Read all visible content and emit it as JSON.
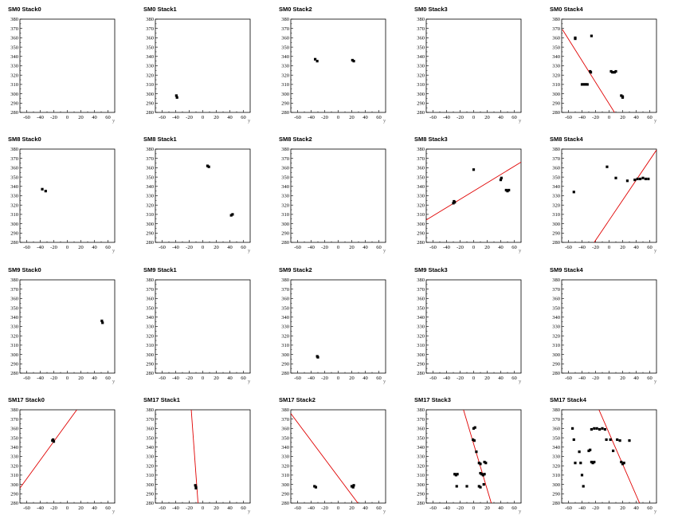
{
  "chart_data": [
    {
      "type": "scatter",
      "title": "SM0 Stack0",
      "xlabel": "y",
      "xlim": [
        -70,
        70
      ],
      "ylim": [
        280,
        380
      ],
      "xticks": [
        -60,
        -40,
        -20,
        0,
        20,
        40,
        60
      ],
      "yticks": [
        280,
        290,
        300,
        310,
        320,
        330,
        340,
        350,
        360,
        370,
        380
      ],
      "points": [],
      "fit_line": null
    },
    {
      "type": "scatter",
      "title": "SM0 Stack1",
      "xlabel": "y",
      "xlim": [
        -70,
        70
      ],
      "ylim": [
        280,
        380
      ],
      "xticks": [
        -60,
        -40,
        -20,
        0,
        20,
        40,
        60
      ],
      "yticks": [
        280,
        290,
        300,
        310,
        320,
        330,
        340,
        350,
        360,
        370,
        380
      ],
      "points": [
        [
          -39,
          298
        ],
        [
          -38,
          296
        ]
      ],
      "fit_line": null
    },
    {
      "type": "scatter",
      "title": "SM0 Stack2",
      "xlabel": "y",
      "xlim": [
        -70,
        70
      ],
      "ylim": [
        280,
        380
      ],
      "xticks": [
        -60,
        -40,
        -20,
        0,
        20,
        40,
        60
      ],
      "yticks": [
        280,
        290,
        300,
        310,
        320,
        330,
        340,
        350,
        360,
        370,
        380
      ],
      "points": [
        [
          -34,
          337
        ],
        [
          -31,
          335
        ],
        [
          21,
          336
        ],
        [
          23,
          335
        ]
      ],
      "fit_line": null
    },
    {
      "type": "scatter",
      "title": "SM0 Stack3",
      "xlabel": "y",
      "xlim": [
        -70,
        70
      ],
      "ylim": [
        280,
        380
      ],
      "xticks": [
        -60,
        -40,
        -20,
        0,
        20,
        40,
        60
      ],
      "yticks": [
        280,
        290,
        300,
        310,
        320,
        330,
        340,
        350,
        360,
        370,
        380
      ],
      "points": [],
      "fit_line": null
    },
    {
      "type": "scatter",
      "title": "SM0 Stack4",
      "xlabel": "y",
      "xlim": [
        -70,
        70
      ],
      "ylim": [
        280,
        380
      ],
      "xticks": [
        -60,
        -40,
        -20,
        0,
        20,
        40,
        60
      ],
      "yticks": [
        280,
        290,
        300,
        310,
        320,
        330,
        340,
        350,
        360,
        370,
        380
      ],
      "points": [
        [
          -50,
          360
        ],
        [
          -50,
          359
        ],
        [
          -26,
          362
        ],
        [
          -40,
          310
        ],
        [
          -38,
          310
        ],
        [
          -36,
          310
        ],
        [
          -34,
          310
        ],
        [
          -32,
          310
        ],
        [
          -28,
          324
        ],
        [
          -27,
          323
        ],
        [
          3,
          324
        ],
        [
          5,
          323
        ],
        [
          8,
          323
        ],
        [
          10,
          324
        ],
        [
          18,
          298
        ],
        [
          20,
          297
        ],
        [
          20,
          296
        ]
      ],
      "fit_line": [
        [
          -69,
          369
        ],
        [
          8,
          280
        ]
      ]
    },
    {
      "type": "scatter",
      "title": "SM8 Stack0",
      "xlabel": "y",
      "xlim": [
        -70,
        70
      ],
      "ylim": [
        280,
        380
      ],
      "xticks": [
        -60,
        -40,
        -20,
        0,
        20,
        40,
        60
      ],
      "yticks": [
        280,
        290,
        300,
        310,
        320,
        330,
        340,
        350,
        360,
        370,
        380
      ],
      "points": [
        [
          -37,
          337
        ],
        [
          -32,
          335
        ]
      ],
      "fit_line": null
    },
    {
      "type": "scatter",
      "title": "SM8 Stack1",
      "xlabel": "y",
      "xlim": [
        -70,
        70
      ],
      "ylim": [
        280,
        380
      ],
      "xticks": [
        -60,
        -40,
        -20,
        0,
        20,
        40,
        60
      ],
      "yticks": [
        280,
        290,
        300,
        310,
        320,
        330,
        340,
        350,
        360,
        370,
        380
      ],
      "points": [
        [
          7,
          362
        ],
        [
          9,
          361
        ],
        [
          42,
          309
        ],
        [
          44,
          310
        ]
      ],
      "fit_line": null
    },
    {
      "type": "scatter",
      "title": "SM8 Stack2",
      "xlabel": "y",
      "xlim": [
        -70,
        70
      ],
      "ylim": [
        280,
        380
      ],
      "xticks": [
        -60,
        -40,
        -20,
        0,
        20,
        40,
        60
      ],
      "yticks": [
        280,
        290,
        300,
        310,
        320,
        330,
        340,
        350,
        360,
        370,
        380
      ],
      "points": [],
      "fit_line": null
    },
    {
      "type": "scatter",
      "title": "SM8 Stack3",
      "xlabel": "y",
      "xlim": [
        -70,
        70
      ],
      "ylim": [
        280,
        380
      ],
      "xticks": [
        -60,
        -40,
        -20,
        0,
        20,
        40,
        60
      ],
      "yticks": [
        280,
        290,
        300,
        310,
        320,
        330,
        340,
        350,
        360,
        370,
        380
      ],
      "points": [
        [
          -30,
          322
        ],
        [
          -29,
          324
        ],
        [
          -28,
          323
        ],
        [
          0,
          358
        ],
        [
          40,
          347
        ],
        [
          41,
          349
        ],
        [
          48,
          336
        ],
        [
          50,
          335
        ],
        [
          52,
          336
        ]
      ],
      "fit_line": [
        [
          -70,
          304
        ],
        [
          70,
          366
        ]
      ]
    },
    {
      "type": "scatter",
      "title": "SM8 Stack4",
      "xlabel": "y",
      "xlim": [
        -70,
        70
      ],
      "ylim": [
        280,
        380
      ],
      "xticks": [
        -60,
        -40,
        -20,
        0,
        20,
        40,
        60
      ],
      "yticks": [
        280,
        290,
        300,
        310,
        320,
        330,
        340,
        350,
        360,
        370,
        380
      ],
      "points": [
        [
          -52,
          334
        ],
        [
          -3,
          361
        ],
        [
          10,
          349
        ],
        [
          27,
          346
        ],
        [
          38,
          347
        ],
        [
          42,
          348
        ],
        [
          46,
          348
        ],
        [
          50,
          349
        ],
        [
          54,
          348
        ],
        [
          58,
          348
        ]
      ],
      "fit_line": [
        [
          -22,
          280
        ],
        [
          70,
          379
        ]
      ]
    },
    {
      "type": "scatter",
      "title": "SM9 Stack0",
      "xlabel": "y",
      "xlim": [
        -70,
        70
      ],
      "ylim": [
        280,
        380
      ],
      "xticks": [
        -60,
        -40,
        -20,
        0,
        20,
        40,
        60
      ],
      "yticks": [
        280,
        290,
        300,
        310,
        320,
        330,
        340,
        350,
        360,
        370,
        380
      ],
      "points": [
        [
          51,
          336
        ],
        [
          52,
          334
        ]
      ],
      "fit_line": null
    },
    {
      "type": "scatter",
      "title": "SM9 Stack1",
      "xlabel": "y",
      "xlim": [
        -70,
        70
      ],
      "ylim": [
        280,
        380
      ],
      "xticks": [
        -60,
        -40,
        -20,
        0,
        20,
        40,
        60
      ],
      "yticks": [
        280,
        290,
        300,
        310,
        320,
        330,
        340,
        350,
        360,
        370,
        380
      ],
      "points": [],
      "fit_line": null
    },
    {
      "type": "scatter",
      "title": "SM9 Stack2",
      "xlabel": "y",
      "xlim": [
        -70,
        70
      ],
      "ylim": [
        280,
        380
      ],
      "xticks": [
        -60,
        -40,
        -20,
        0,
        20,
        40,
        60
      ],
      "yticks": [
        280,
        290,
        300,
        310,
        320,
        330,
        340,
        350,
        360,
        370,
        380
      ],
      "points": [
        [
          -31,
          298
        ],
        [
          -30,
          297
        ]
      ],
      "fit_line": null
    },
    {
      "type": "scatter",
      "title": "SM9 Stack3",
      "xlabel": "y",
      "xlim": [
        -70,
        70
      ],
      "ylim": [
        280,
        380
      ],
      "xticks": [
        -60,
        -40,
        -20,
        0,
        20,
        40,
        60
      ],
      "yticks": [
        280,
        290,
        300,
        310,
        320,
        330,
        340,
        350,
        360,
        370,
        380
      ],
      "points": [],
      "fit_line": null
    },
    {
      "type": "scatter",
      "title": "SM9 Stack4",
      "xlabel": "y",
      "xlim": [
        -70,
        70
      ],
      "ylim": [
        280,
        380
      ],
      "xticks": [
        -60,
        -40,
        -20,
        0,
        20,
        40,
        60
      ],
      "yticks": [
        280,
        290,
        300,
        310,
        320,
        330,
        340,
        350,
        360,
        370,
        380
      ],
      "points": [],
      "fit_line": null
    },
    {
      "type": "scatter",
      "title": "SM17 Stack0",
      "xlabel": "y",
      "xlim": [
        -70,
        70
      ],
      "ylim": [
        280,
        380
      ],
      "xticks": [
        -60,
        -40,
        -20,
        0,
        20,
        40,
        60
      ],
      "yticks": [
        280,
        290,
        300,
        310,
        320,
        330,
        340,
        350,
        360,
        370,
        380
      ],
      "points": [
        [
          -21,
          348
        ],
        [
          -20,
          346
        ],
        [
          -22,
          347
        ]
      ],
      "fit_line": [
        [
          -70,
          296
        ],
        [
          14,
          380
        ]
      ]
    },
    {
      "type": "scatter",
      "title": "SM17 Stack1",
      "xlabel": "y",
      "xlim": [
        -70,
        70
      ],
      "ylim": [
        280,
        380
      ],
      "xticks": [
        -60,
        -40,
        -20,
        0,
        20,
        40,
        60
      ],
      "yticks": [
        280,
        290,
        300,
        310,
        320,
        330,
        340,
        350,
        360,
        370,
        380
      ],
      "points": [
        [
          -11,
          299
        ],
        [
          -10,
          297
        ],
        [
          -10,
          296
        ]
      ],
      "fit_line": [
        [
          -17,
          380
        ],
        [
          -7,
          280
        ]
      ]
    },
    {
      "type": "scatter",
      "title": "SM17 Stack2",
      "xlabel": "y",
      "xlim": [
        -70,
        70
      ],
      "ylim": [
        280,
        380
      ],
      "xticks": [
        -60,
        -40,
        -20,
        0,
        20,
        40,
        60
      ],
      "yticks": [
        280,
        290,
        300,
        310,
        320,
        330,
        340,
        350,
        360,
        370,
        380
      ],
      "points": [
        [
          -35,
          298
        ],
        [
          -33,
          297
        ],
        [
          20,
          298
        ],
        [
          22,
          297
        ],
        [
          23,
          299
        ]
      ],
      "fit_line": [
        [
          -70,
          376
        ],
        [
          29,
          280
        ]
      ]
    },
    {
      "type": "scatter",
      "title": "SM17 Stack3",
      "xlabel": "y",
      "xlim": [
        -70,
        70
      ],
      "ylim": [
        280,
        380
      ],
      "xticks": [
        -60,
        -40,
        -20,
        0,
        20,
        40,
        60
      ],
      "yticks": [
        280,
        290,
        300,
        310,
        320,
        330,
        340,
        350,
        360,
        370,
        380
      ],
      "points": [
        [
          -28,
          311
        ],
        [
          -26,
          310
        ],
        [
          -24,
          311
        ],
        [
          -25,
          298
        ],
        [
          -10,
          298
        ],
        [
          0,
          360
        ],
        [
          2,
          361
        ],
        [
          -1,
          348
        ],
        [
          1,
          347
        ],
        [
          4,
          335
        ],
        [
          8,
          323
        ],
        [
          10,
          322
        ],
        [
          16,
          324
        ],
        [
          18,
          323
        ],
        [
          10,
          312
        ],
        [
          12,
          311
        ],
        [
          14,
          310
        ],
        [
          16,
          311
        ],
        [
          8,
          298
        ],
        [
          10,
          297
        ],
        [
          15,
          300
        ]
      ],
      "fit_line": [
        [
          -15,
          380
        ],
        [
          26,
          280
        ]
      ]
    },
    {
      "type": "scatter",
      "title": "SM17 Stack4",
      "xlabel": "y",
      "xlim": [
        -70,
        70
      ],
      "ylim": [
        280,
        380
      ],
      "xticks": [
        -60,
        -40,
        -20,
        0,
        20,
        40,
        60
      ],
      "yticks": [
        280,
        290,
        300,
        310,
        320,
        330,
        340,
        350,
        360,
        370,
        380
      ],
      "points": [
        [
          -54,
          360
        ],
        [
          -52,
          348
        ],
        [
          -50,
          323
        ],
        [
          -44,
          335
        ],
        [
          -42,
          323
        ],
        [
          -40,
          310
        ],
        [
          -38,
          298
        ],
        [
          -30,
          336
        ],
        [
          -28,
          337
        ],
        [
          -26,
          324
        ],
        [
          -24,
          323
        ],
        [
          -22,
          324
        ],
        [
          -26,
          359
        ],
        [
          -22,
          360
        ],
        [
          -18,
          360
        ],
        [
          -14,
          359
        ],
        [
          -10,
          360
        ],
        [
          -6,
          359
        ],
        [
          -4,
          348
        ],
        [
          2,
          348
        ],
        [
          6,
          336
        ],
        [
          12,
          348
        ],
        [
          16,
          347
        ],
        [
          18,
          324
        ],
        [
          20,
          322
        ],
        [
          22,
          323
        ],
        [
          30,
          347
        ]
      ],
      "fit_line": [
        [
          -15,
          380
        ],
        [
          45,
          280
        ]
      ]
    }
  ]
}
